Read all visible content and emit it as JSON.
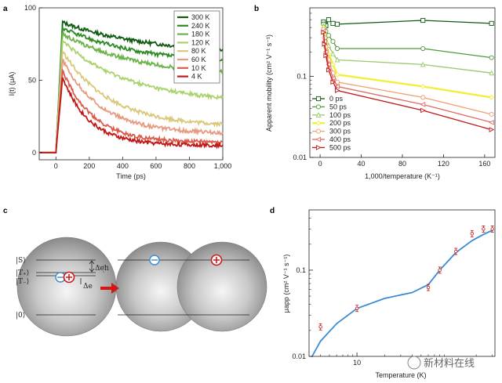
{
  "panels": {
    "a": {
      "label": "a"
    },
    "b": {
      "label": "b"
    },
    "c": {
      "label": "c"
    },
    "d": {
      "label": "d"
    }
  },
  "chart_data": [
    {
      "id": "a",
      "type": "line",
      "xlabel": "Time (ps)",
      "ylabel": "I(t) (μA)",
      "xlim": [
        -100,
        1000
      ],
      "ylim": [
        -5,
        100
      ],
      "xticks": [
        "0",
        "200",
        "400",
        "600",
        "800",
        "1,000"
      ],
      "yticks": [
        "0",
        "50",
        "100"
      ],
      "legend_position": "top-right",
      "series": [
        {
          "name": "300 K",
          "color": "#0e5a10",
          "peak": 90,
          "end": 68,
          "tau": 500
        },
        {
          "name": "240 K",
          "color": "#2e8a22",
          "peak": 86,
          "end": 60,
          "tau": 480
        },
        {
          "name": "180 K",
          "color": "#6cb34a",
          "peak": 82,
          "end": 52,
          "tau": 450
        },
        {
          "name": "120 K",
          "color": "#a9d36e",
          "peak": 77,
          "end": 34,
          "tau": 400
        },
        {
          "name": "80 K",
          "color": "#d9c878",
          "peak": 70,
          "end": 18,
          "tau": 280
        },
        {
          "name": "60 K",
          "color": "#e89a7f",
          "peak": 64,
          "end": 13,
          "tau": 230
        },
        {
          "name": "10 K",
          "color": "#db5a4a",
          "peak": 57,
          "end": 7,
          "tau": 180
        },
        {
          "name": "4 K",
          "color": "#c01818",
          "peak": 52,
          "end": 5,
          "tau": 160
        }
      ]
    },
    {
      "id": "b",
      "type": "line",
      "scale_y": "log",
      "xlabel": "1,000/temperature (K⁻¹)",
      "ylabel": "Apparent mobility (cm² V⁻¹ s⁻¹)",
      "xlim": [
        -10,
        170
      ],
      "ylim": [
        0.01,
        0.7
      ],
      "xticks": [
        "0",
        "40",
        "80",
        "120",
        "160"
      ],
      "yticks": [
        "0.01",
        "0.1"
      ],
      "legend_position": "bottom-left",
      "x": [
        3.3,
        4.2,
        5.6,
        8.3,
        12.5,
        16.7,
        100,
        166.7
      ],
      "series": [
        {
          "name": "0 ps",
          "color": "#0e5a10",
          "marker": "square",
          "values": [
            0.47,
            0.44,
            0.42,
            0.5,
            0.45,
            0.44,
            0.49,
            0.45
          ]
        },
        {
          "name": "50 ps",
          "color": "#4f9a3a",
          "marker": "circle",
          "values": [
            0.44,
            0.4,
            0.36,
            0.32,
            0.27,
            0.22,
            0.22,
            0.17
          ]
        },
        {
          "name": "100 ps",
          "color": "#99c96a",
          "marker": "triangle",
          "values": [
            0.42,
            0.36,
            0.31,
            0.24,
            0.19,
            0.16,
            0.14,
            0.11
          ]
        },
        {
          "name": "200 ps",
          "color": "#f0f03a",
          "marker": "diamond",
          "values": [
            0.4,
            0.33,
            0.26,
            0.19,
            0.14,
            0.105,
            0.075,
            0.055
          ]
        },
        {
          "name": "300 ps",
          "color": "#f0a070",
          "marker": "hexagon",
          "values": [
            0.38,
            0.3,
            0.23,
            0.16,
            0.11,
            0.085,
            0.055,
            0.034
          ]
        },
        {
          "name": "400 ps",
          "color": "#e06a60",
          "marker": "triangle-left",
          "values": [
            0.36,
            0.27,
            0.2,
            0.14,
            0.095,
            0.075,
            0.045,
            0.027
          ]
        },
        {
          "name": "500 ps",
          "color": "#c01818",
          "marker": "triangle-right",
          "values": [
            0.35,
            0.25,
            0.18,
            0.12,
            0.085,
            0.067,
            0.038,
            0.022
          ]
        }
      ]
    },
    {
      "id": "d",
      "type": "scatter",
      "scale_x": "log",
      "scale_y": "log",
      "xlabel": "Temperature (K)",
      "ylabel": "μapp (cm² V⁻¹ s⁻¹)",
      "xlim": [
        3,
        320
      ],
      "ylim": [
        0.01,
        0.5
      ],
      "xticks": [
        "10"
      ],
      "yticks": [
        "0.01",
        "0.1"
      ],
      "points": {
        "x": [
          4,
          10,
          60,
          80,
          120,
          180,
          240,
          300
        ],
        "y": [
          0.022,
          0.036,
          0.063,
          0.1,
          0.165,
          0.265,
          0.3,
          0.3
        ]
      },
      "fit_curve": {
        "x": [
          3.2,
          4,
          6,
          10,
          20,
          40,
          60,
          80,
          120,
          180,
          240,
          300
        ],
        "y": [
          0.0098,
          0.015,
          0.024,
          0.036,
          0.047,
          0.055,
          0.068,
          0.1,
          0.16,
          0.22,
          0.26,
          0.29
        ]
      },
      "point_color": "#c01818",
      "curve_color": "#3a8bd0"
    }
  ],
  "diagram_c": {
    "levels": [
      "|S⟩",
      "|T₊⟩",
      "|T₋⟩",
      "|0⟩"
    ],
    "gap_labels": [
      "Δeh",
      "Δe"
    ],
    "colors": {
      "electron": "#3a8bd0",
      "hole": "#d01818",
      "arrow": "#d01818"
    }
  },
  "watermark": "新材料在线"
}
